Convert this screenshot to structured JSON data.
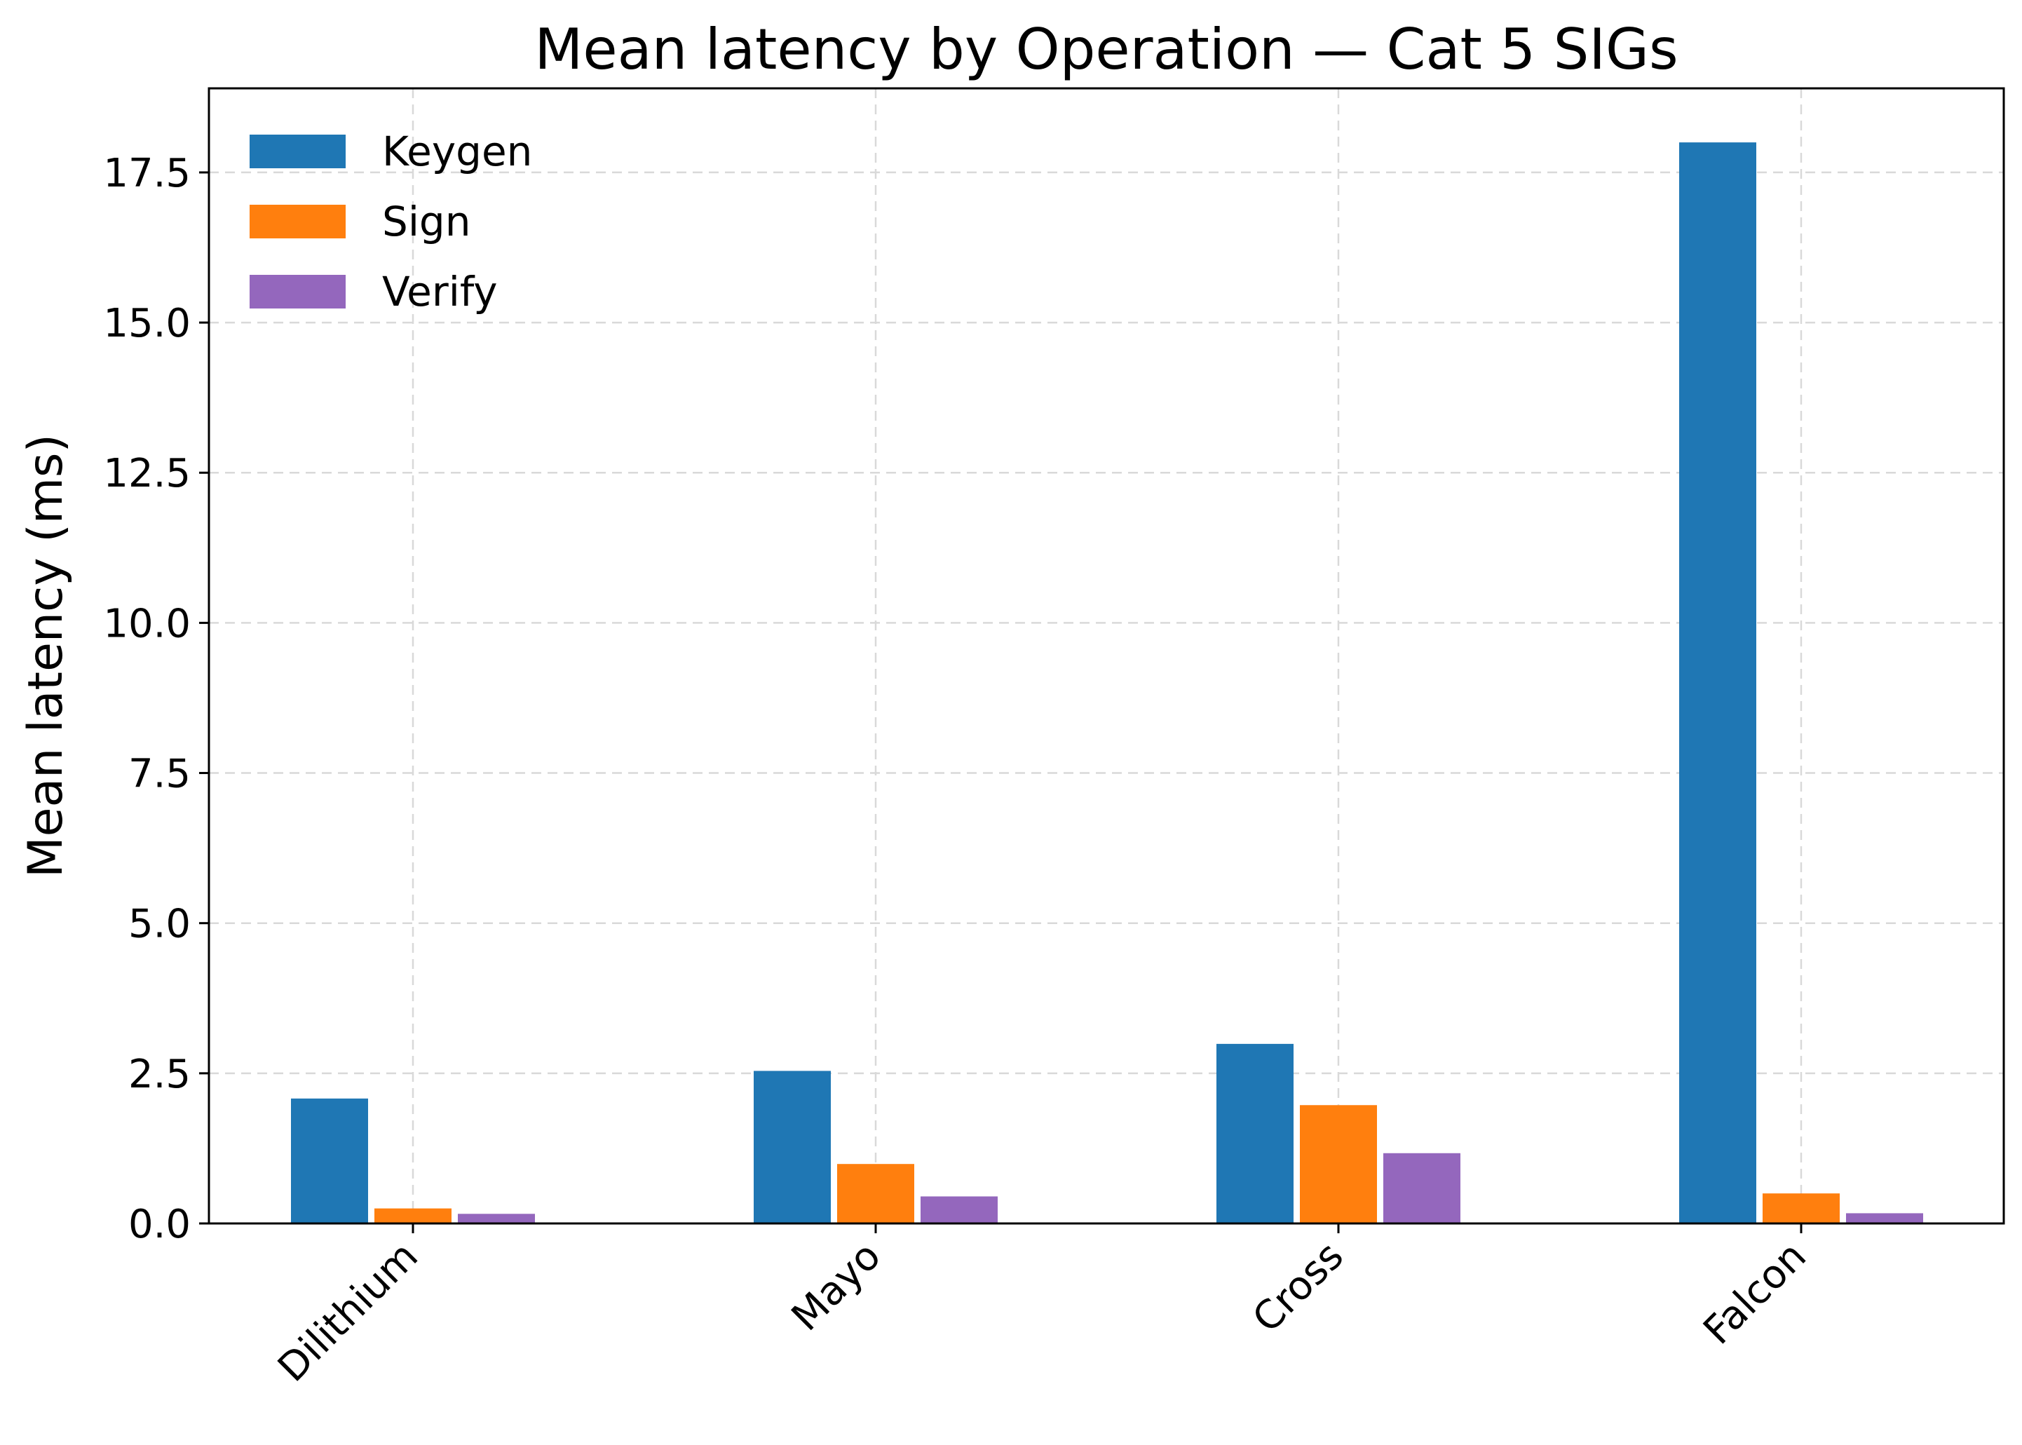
{
  "chart_data": {
    "type": "bar",
    "title": "Mean latency by Operation — Cat 5 SIGs",
    "xlabel": "",
    "ylabel": "Mean latency (ms)",
    "categories": [
      "Dilithium",
      "Mayo",
      "Cross",
      "Falcon"
    ],
    "series": [
      {
        "name": "Keygen",
        "color": "#1f77b4",
        "values": [
          2.08,
          2.54,
          2.99,
          18.0
        ]
      },
      {
        "name": "Sign",
        "color": "#ff7f0e",
        "values": [
          0.25,
          0.99,
          1.97,
          0.5
        ]
      },
      {
        "name": "Verify",
        "color": "#9467bd",
        "values": [
          0.16,
          0.45,
          1.17,
          0.17
        ]
      }
    ],
    "ylim": [
      0,
      18.9
    ],
    "yticks": [
      0.0,
      2.5,
      5.0,
      7.5,
      10.0,
      12.5,
      15.0,
      17.5
    ],
    "ytick_labels": [
      "0.0",
      "2.5",
      "5.0",
      "7.5",
      "10.0",
      "12.5",
      "15.0",
      "17.5"
    ],
    "grid": true,
    "legend_position": "top-left"
  }
}
